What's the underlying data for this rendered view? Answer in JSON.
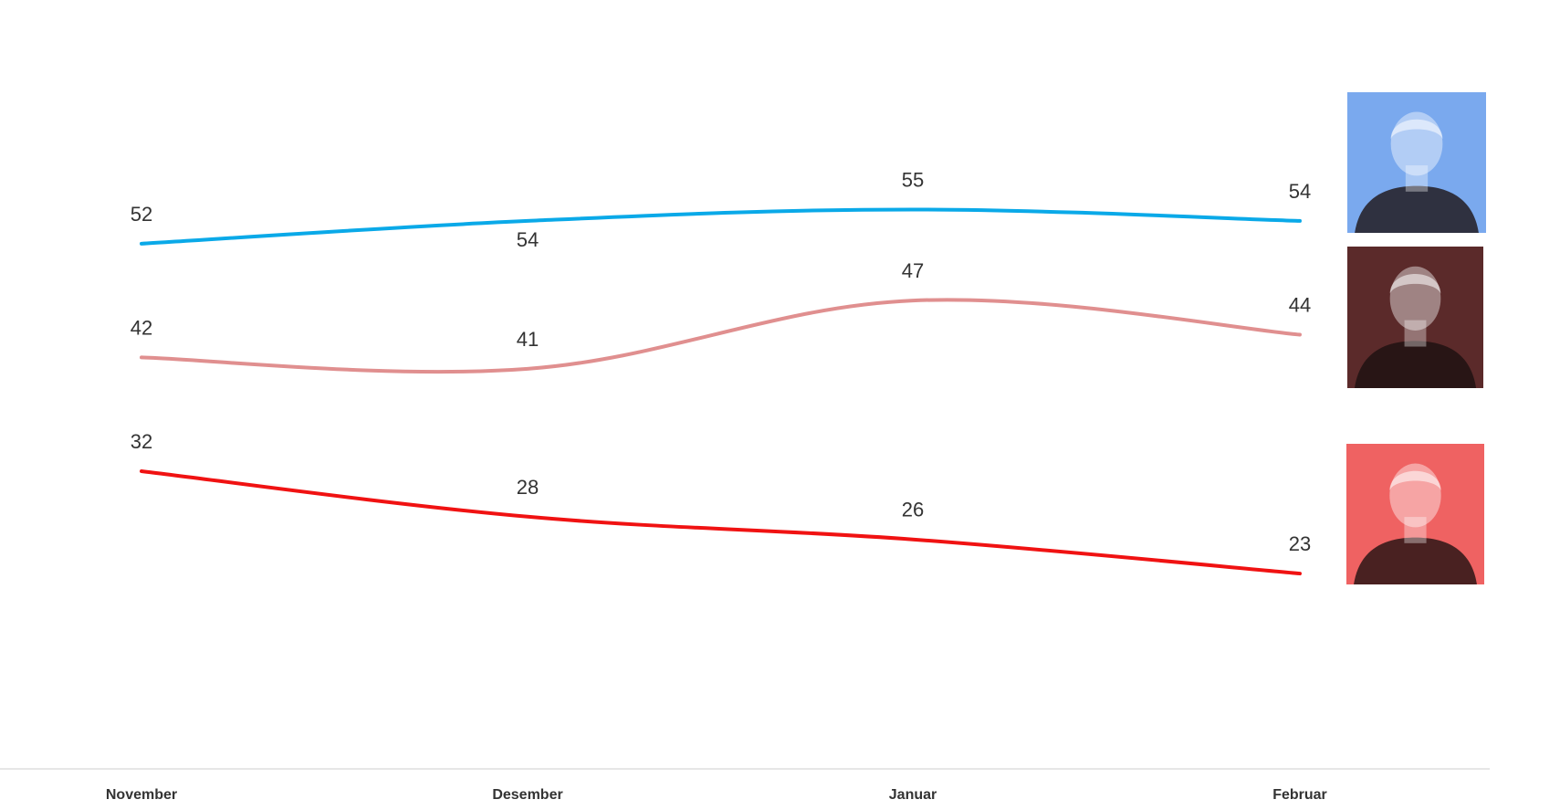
{
  "chart_data": {
    "type": "line",
    "categories": [
      "November",
      "Desember",
      "Januar",
      "Februar"
    ],
    "series": [
      {
        "values": [
          52,
          54,
          55,
          54
        ],
        "color": "#0aa9e8"
      },
      {
        "values": [
          42,
          41,
          47,
          44
        ],
        "color": "#e08f8f"
      },
      {
        "values": [
          32,
          28,
          26,
          23
        ],
        "color": "#f01212"
      }
    ],
    "ylim": [
      10,
      67
    ],
    "grid": false,
    "legend": "none",
    "portraits": [
      {
        "icon": "person-portrait-icon",
        "tint": "#7aa9ee"
      },
      {
        "icon": "person-portrait-icon",
        "tint": "#5b2a2a"
      },
      {
        "icon": "person-portrait-icon",
        "tint": "#ef6262"
      }
    ]
  }
}
